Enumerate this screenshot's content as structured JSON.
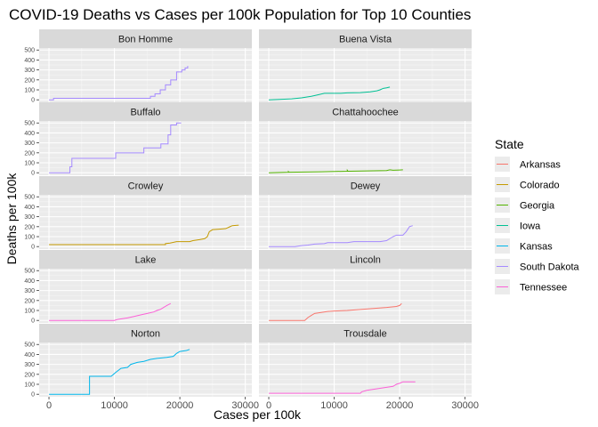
{
  "chart_data": {
    "type": "line",
    "title": "COVID-19 Deaths vs Cases per 100k Population for Top 10 Counties",
    "xlabel": "Cases per 100k",
    "ylabel": "Deaths per 100k",
    "xlim": [
      -1500,
      31000
    ],
    "ylim": [
      -25,
      520
    ],
    "x_ticks": [
      0,
      10000,
      20000,
      30000
    ],
    "x_tick_labels": [
      "0",
      "10000",
      "20000",
      "30000"
    ],
    "y_ticks": [
      0,
      100,
      200,
      300,
      400,
      500
    ],
    "y_tick_labels": [
      "0",
      "100",
      "200",
      "300",
      "400",
      "500"
    ],
    "grid": true,
    "legend": {
      "title": "State",
      "position": "right",
      "items": [
        {
          "name": "Arkansas",
          "color": "#F8766D"
        },
        {
          "name": "Colorado",
          "color": "#C49A00"
        },
        {
          "name": "Georgia",
          "color": "#53B400"
        },
        {
          "name": "Iowa",
          "color": "#00C094"
        },
        {
          "name": "Kansas",
          "color": "#00B6EB"
        },
        {
          "name": "South Dakota",
          "color": "#A58AFF"
        },
        {
          "name": "Tennessee",
          "color": "#FB61D7"
        }
      ]
    },
    "panels": [
      {
        "name": "Bon Homme",
        "state": "South Dakota",
        "points": [
          [
            0,
            0
          ],
          [
            700,
            0
          ],
          [
            700,
            15
          ],
          [
            15500,
            15
          ],
          [
            15500,
            35
          ],
          [
            16200,
            35
          ],
          [
            16200,
            60
          ],
          [
            17000,
            60
          ],
          [
            17000,
            100
          ],
          [
            17800,
            100
          ],
          [
            17800,
            150
          ],
          [
            18600,
            150
          ],
          [
            18600,
            200
          ],
          [
            19500,
            200
          ],
          [
            19500,
            280
          ],
          [
            20300,
            280
          ],
          [
            20300,
            300
          ],
          [
            20800,
            300
          ],
          [
            20800,
            320
          ],
          [
            21200,
            320
          ],
          [
            21200,
            340
          ]
        ]
      },
      {
        "name": "Buena Vista",
        "state": "Iowa",
        "points": [
          [
            0,
            0
          ],
          [
            2000,
            5
          ],
          [
            3500,
            10
          ],
          [
            5000,
            20
          ],
          [
            6500,
            35
          ],
          [
            7500,
            50
          ],
          [
            8500,
            65
          ],
          [
            11000,
            65
          ],
          [
            12000,
            70
          ],
          [
            14000,
            72
          ],
          [
            15500,
            80
          ],
          [
            16500,
            90
          ],
          [
            17000,
            100
          ],
          [
            17500,
            115
          ],
          [
            18000,
            120
          ],
          [
            18500,
            128
          ]
        ]
      },
      {
        "name": "Buffalo",
        "state": "South Dakota",
        "points": [
          [
            0,
            0
          ],
          [
            3200,
            0
          ],
          [
            3200,
            60
          ],
          [
            3500,
            60
          ],
          [
            3500,
            145
          ],
          [
            10200,
            145
          ],
          [
            10200,
            200
          ],
          [
            14500,
            200
          ],
          [
            14500,
            250
          ],
          [
            17100,
            250
          ],
          [
            17100,
            290
          ],
          [
            18200,
            290
          ],
          [
            18200,
            380
          ],
          [
            18600,
            380
          ],
          [
            18600,
            480
          ],
          [
            19500,
            480
          ],
          [
            19500,
            500
          ],
          [
            20200,
            500
          ]
        ]
      },
      {
        "name": "Chattahoochee",
        "state": "Georgia",
        "points": [
          [
            0,
            0
          ],
          [
            3000,
            5
          ],
          [
            3000,
            12
          ],
          [
            3100,
            5
          ],
          [
            8000,
            10
          ],
          [
            12000,
            15
          ],
          [
            12000,
            25
          ],
          [
            12100,
            15
          ],
          [
            16000,
            20
          ],
          [
            18000,
            22
          ],
          [
            18500,
            30
          ],
          [
            19000,
            25
          ],
          [
            20000,
            28
          ],
          [
            20500,
            30
          ]
        ]
      },
      {
        "name": "Crowley",
        "state": "Colorado",
        "points": [
          [
            0,
            20
          ],
          [
            17800,
            20
          ],
          [
            17800,
            30
          ],
          [
            18500,
            35
          ],
          [
            19500,
            50
          ],
          [
            21500,
            50
          ],
          [
            22000,
            60
          ],
          [
            23000,
            70
          ],
          [
            23800,
            80
          ],
          [
            24200,
            100
          ],
          [
            24500,
            150
          ],
          [
            25000,
            170
          ],
          [
            26000,
            175
          ],
          [
            27000,
            180
          ],
          [
            27500,
            195
          ],
          [
            28000,
            210
          ],
          [
            29000,
            215
          ]
        ]
      },
      {
        "name": "Dewey",
        "state": "South Dakota",
        "points": [
          [
            0,
            0
          ],
          [
            4000,
            0
          ],
          [
            5000,
            10
          ],
          [
            6000,
            15
          ],
          [
            7000,
            25
          ],
          [
            8500,
            30
          ],
          [
            9000,
            40
          ],
          [
            12000,
            40
          ],
          [
            13000,
            50
          ],
          [
            17000,
            50
          ],
          [
            18000,
            60
          ],
          [
            18500,
            80
          ],
          [
            19000,
            100
          ],
          [
            19500,
            115
          ],
          [
            20500,
            115
          ],
          [
            21000,
            150
          ],
          [
            21500,
            200
          ],
          [
            22000,
            210
          ]
        ]
      },
      {
        "name": "Lake",
        "state": "Tennessee",
        "points": [
          [
            0,
            0
          ],
          [
            10000,
            0
          ],
          [
            10500,
            10
          ],
          [
            11000,
            15
          ],
          [
            12000,
            25
          ],
          [
            13000,
            40
          ],
          [
            14000,
            55
          ],
          [
            15000,
            70
          ],
          [
            16000,
            85
          ],
          [
            16500,
            100
          ],
          [
            17000,
            110
          ],
          [
            17500,
            130
          ],
          [
            18000,
            150
          ],
          [
            18600,
            170
          ]
        ]
      },
      {
        "name": "Lincoln",
        "state": "Arkansas",
        "points": [
          [
            0,
            0
          ],
          [
            5500,
            0
          ],
          [
            6000,
            30
          ],
          [
            6500,
            50
          ],
          [
            7000,
            70
          ],
          [
            8000,
            80
          ],
          [
            9000,
            90
          ],
          [
            10000,
            95
          ],
          [
            12000,
            100
          ],
          [
            14000,
            110
          ],
          [
            16000,
            120
          ],
          [
            18000,
            130
          ],
          [
            19500,
            140
          ],
          [
            20000,
            150
          ],
          [
            20300,
            170
          ]
        ]
      },
      {
        "name": "Norton",
        "state": "Kansas",
        "points": [
          [
            0,
            0
          ],
          [
            6200,
            0
          ],
          [
            6200,
            180
          ],
          [
            9500,
            180
          ],
          [
            10200,
            220
          ],
          [
            11000,
            260
          ],
          [
            12000,
            270
          ],
          [
            12500,
            300
          ],
          [
            13500,
            320
          ],
          [
            14500,
            330
          ],
          [
            15500,
            350
          ],
          [
            16500,
            360
          ],
          [
            18000,
            370
          ],
          [
            19000,
            380
          ],
          [
            19500,
            410
          ],
          [
            20000,
            430
          ],
          [
            21000,
            440
          ],
          [
            21500,
            450
          ]
        ]
      },
      {
        "name": "Trousdale",
        "state": "Tennessee",
        "points": [
          [
            0,
            10
          ],
          [
            14000,
            10
          ],
          [
            14200,
            25
          ],
          [
            15000,
            40
          ],
          [
            16000,
            50
          ],
          [
            17000,
            60
          ],
          [
            18000,
            70
          ],
          [
            19000,
            80
          ],
          [
            19500,
            100
          ],
          [
            20000,
            110
          ],
          [
            20500,
            125
          ],
          [
            22400,
            125
          ]
        ]
      }
    ]
  }
}
